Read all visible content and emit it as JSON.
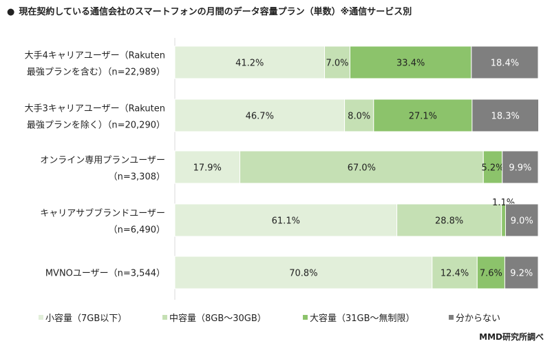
{
  "title": "現在契約している通信会社のスマートフォンの月間のデータ容量プラン（単数）※通信サービス別",
  "title_bullet": "●",
  "source": "MMD研究所調べ",
  "chart_data": {
    "type": "bar",
    "orientation": "horizontal",
    "stacked": "100%",
    "title": "現在契約している通信会社のスマートフォンの月間のデータ容量プラン（単数）※通信サービス別",
    "categories": [
      [
        "大手4キャリアユーザー（Rakuten",
        "最強プランを含む）（n=22,989）"
      ],
      [
        "大手3キャリアユーザー（Rakuten",
        "最強プランを除く）（n=20,290）"
      ],
      [
        "オンライン専用プランユーザー",
        "（n=3,308）"
      ],
      [
        "キャリアサブブランドユーザー",
        "（n=6,490）"
      ],
      [
        "MVNOユーザー（n=3,544）"
      ]
    ],
    "series": [
      {
        "name": "小容量（7GB以下）",
        "color": "#e2efda",
        "text_color": "#222222",
        "values": [
          41.2,
          46.7,
          17.9,
          61.1,
          70.8
        ]
      },
      {
        "name": "中容量（8GB～30GB）",
        "color": "#c5e0b4",
        "text_color": "#222222",
        "values": [
          7.0,
          8.0,
          67.0,
          28.8,
          12.4
        ]
      },
      {
        "name": "大容量（31GB～無制限）",
        "color": "#8cc36b",
        "text_color": "#222222",
        "values": [
          33.4,
          27.1,
          5.2,
          1.1,
          7.6
        ]
      },
      {
        "name": "分からない",
        "color": "#7f7f7f",
        "text_color": "#ffffff",
        "values": [
          18.4,
          18.3,
          9.9,
          9.0,
          9.2
        ]
      }
    ],
    "value_format": "{v}%",
    "xlim": [
      0,
      100
    ],
    "grid": false,
    "legend": "bottom"
  }
}
